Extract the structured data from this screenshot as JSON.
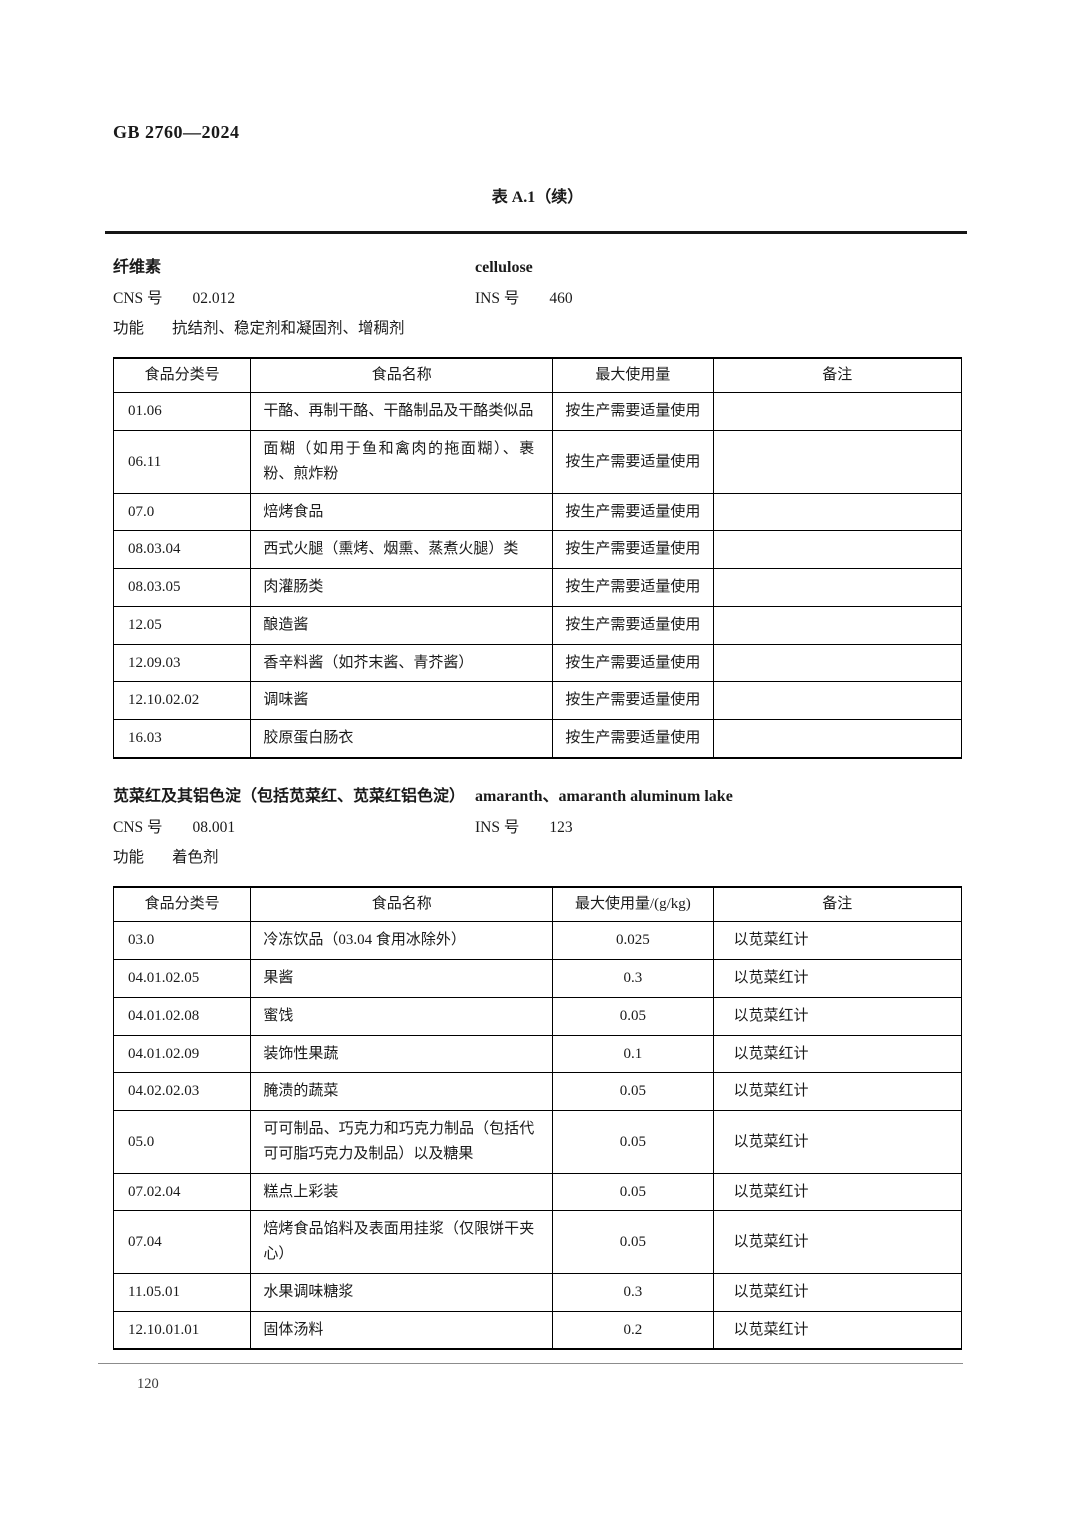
{
  "page": {
    "doc_number": "GB 2760—2024",
    "table_title": "表 A.1（续）",
    "page_number": "120"
  },
  "labels": {
    "cns": "CNS 号",
    "ins": "INS 号",
    "function": "功能"
  },
  "sections": [
    {
      "name_cn": "纤维素",
      "name_en": "cellulose",
      "cns_value": "02.012",
      "ins_value": "460",
      "function_value": "抗结剂、稳定剂和凝固剂、增稠剂",
      "table": {
        "headers": [
          "食品分类号",
          "食品名称",
          "最大使用量",
          "备注"
        ],
        "rows": [
          [
            "01.06",
            "干酪、再制干酪、干酪制品及干酪类似品",
            "按生产需要适量使用",
            ""
          ],
          [
            "06.11",
            "面糊（如用于鱼和禽肉的拖面糊）、裹粉、煎炸粉",
            "按生产需要适量使用",
            ""
          ],
          [
            "07.0",
            "焙烤食品",
            "按生产需要适量使用",
            ""
          ],
          [
            "08.03.04",
            "西式火腿（熏烤、烟熏、蒸煮火腿）类",
            "按生产需要适量使用",
            ""
          ],
          [
            "08.03.05",
            "肉灌肠类",
            "按生产需要适量使用",
            ""
          ],
          [
            "12.05",
            "酿造酱",
            "按生产需要适量使用",
            ""
          ],
          [
            "12.09.03",
            "香辛料酱（如芥末酱、青芥酱）",
            "按生产需要适量使用",
            ""
          ],
          [
            "12.10.02.02",
            "调味酱",
            "按生产需要适量使用",
            ""
          ],
          [
            "16.03",
            "胶原蛋白肠衣",
            "按生产需要适量使用",
            ""
          ]
        ]
      }
    },
    {
      "name_cn": "苋菜红及其铝色淀（包括苋菜红、苋菜红铝色淀）",
      "name_en": "amaranth、amaranth aluminum lake",
      "cns_value": "08.001",
      "ins_value": "123",
      "function_value": "着色剂",
      "table": {
        "headers": [
          "食品分类号",
          "食品名称",
          "最大使用量/(g/kg)",
          "备注"
        ],
        "rows": [
          [
            "03.0",
            "冷冻饮品（03.04 食用冰除外）",
            "0.025",
            "以苋菜红计"
          ],
          [
            "04.01.02.05",
            "果酱",
            "0.3",
            "以苋菜红计"
          ],
          [
            "04.01.02.08",
            "蜜饯",
            "0.05",
            "以苋菜红计"
          ],
          [
            "04.01.02.09",
            "装饰性果蔬",
            "0.1",
            "以苋菜红计"
          ],
          [
            "04.02.02.03",
            "腌渍的蔬菜",
            "0.05",
            "以苋菜红计"
          ],
          [
            "05.0",
            "可可制品、巧克力和巧克力制品（包括代可可脂巧克力及制品）以及糖果",
            "0.05",
            "以苋菜红计"
          ],
          [
            "07.02.04",
            "糕点上彩装",
            "0.05",
            "以苋菜红计"
          ],
          [
            "07.04",
            "焙烤食品馅料及表面用挂浆（仅限饼干夹心）",
            "0.05",
            "以苋菜红计"
          ],
          [
            "11.05.01",
            "水果调味糖浆",
            "0.3",
            "以苋菜红计"
          ],
          [
            "12.10.01.01",
            "固体汤料",
            "0.2",
            "以苋菜红计"
          ]
        ]
      }
    }
  ]
}
